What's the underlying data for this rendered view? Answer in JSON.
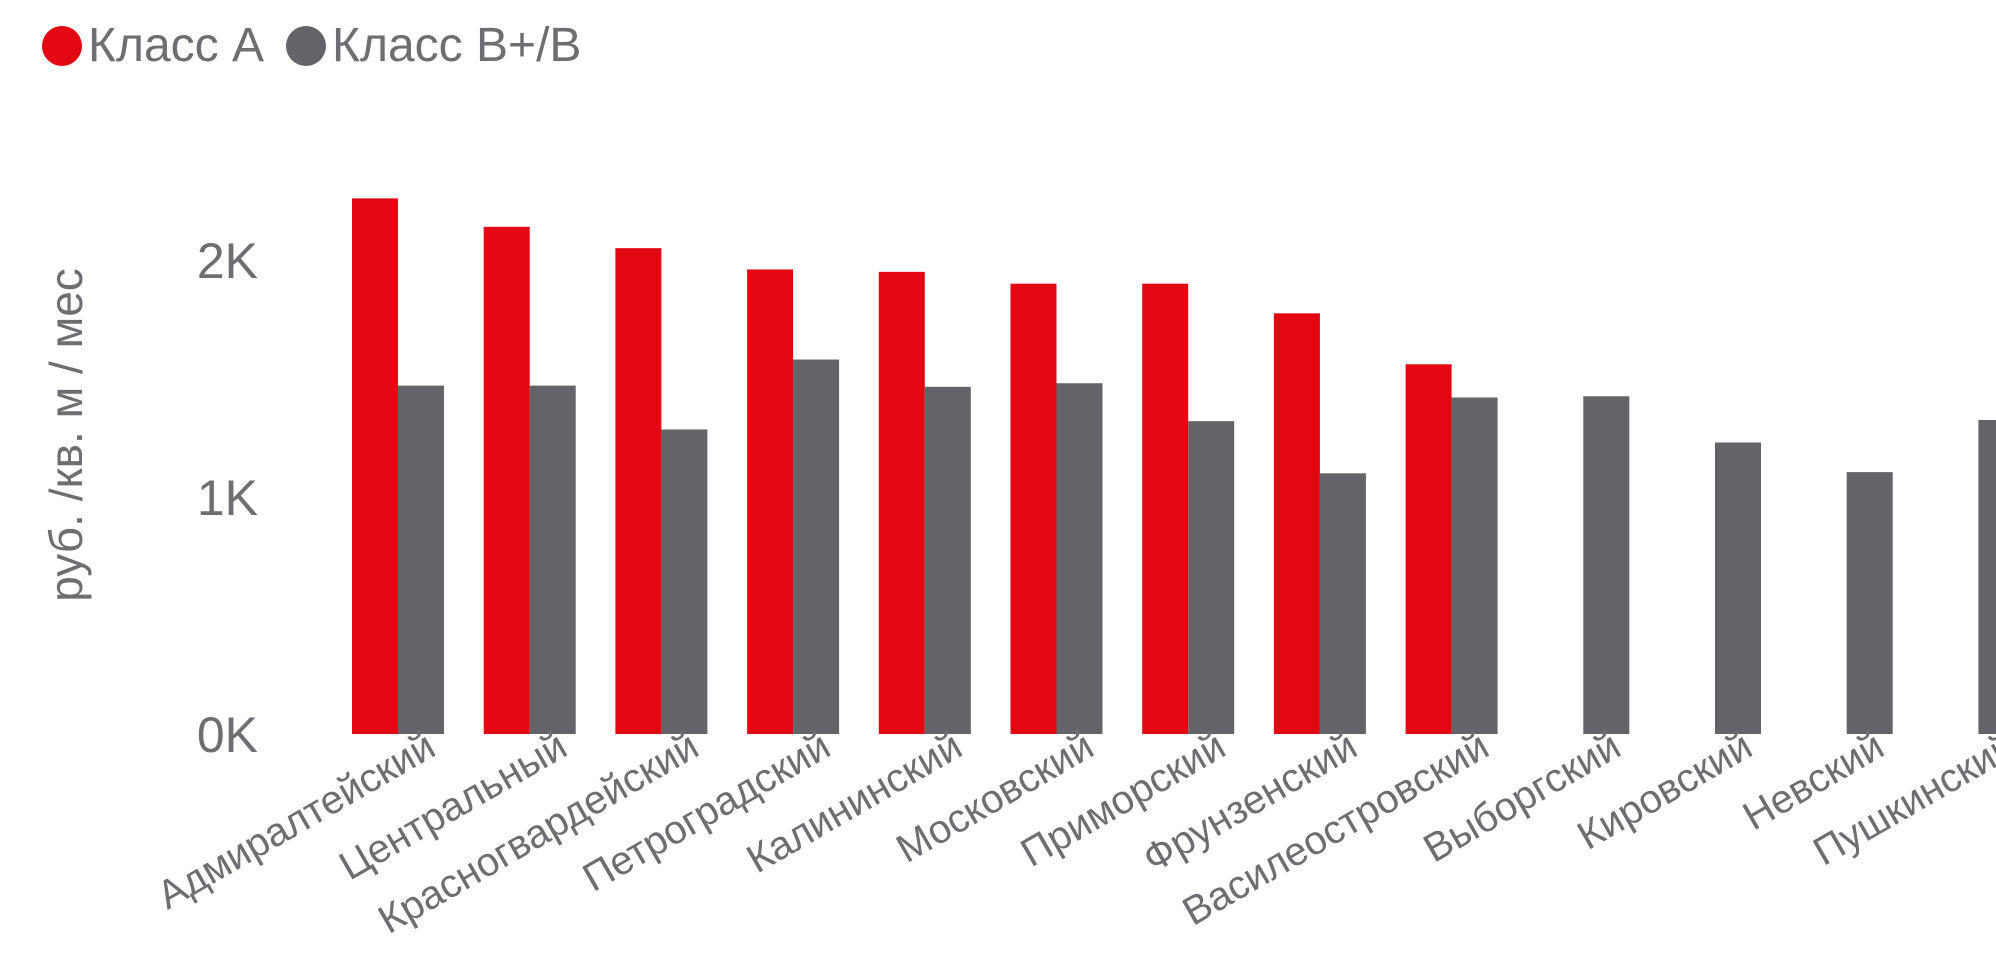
{
  "chart_data": {
    "type": "bar",
    "title": "",
    "ylabel": "руб. /кв. м / мес",
    "xlabel": "",
    "ylim": [
      0,
      2400
    ],
    "yticks": [
      {
        "value": 0,
        "label": "0K"
      },
      {
        "value": 1000,
        "label": "1K"
      },
      {
        "value": 2000,
        "label": "2K"
      }
    ],
    "legend_position": "top-left",
    "categories": [
      "Адмиралтейский",
      "Центральный",
      "Красногвардейский",
      "Петроградский",
      "Калининский",
      "Московский",
      "Приморский",
      "Фрунзенский",
      "Василеостровский",
      "Выборгский",
      "Кировский",
      "Невский",
      "Пушкинский"
    ],
    "series": [
      {
        "name": "Класс А",
        "color": "#e30613",
        "values": [
          2260,
          2140,
          2050,
          1960,
          1950,
          1900,
          1900,
          1775,
          1560,
          null,
          null,
          null,
          null
        ]
      },
      {
        "name": "Класс В+/В",
        "color": "#636467",
        "values": [
          1470,
          1470,
          1285,
          1580,
          1465,
          1480,
          1320,
          1100,
          1420,
          1425,
          1230,
          1105,
          1325
        ]
      }
    ]
  }
}
